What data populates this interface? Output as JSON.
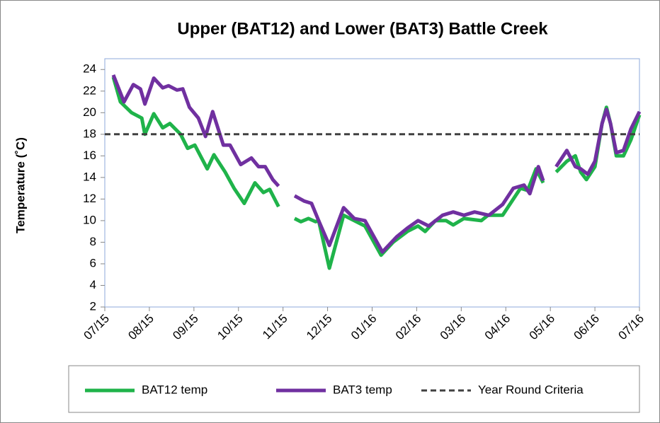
{
  "chart_data": {
    "type": "line",
    "title": "Upper (BAT12) and Lower (BAT3) Battle Creek",
    "y_label": "Temperature (˚C)",
    "xlim": [
      0,
      12
    ],
    "xticks": [
      {
        "value": 0,
        "label": "07/15"
      },
      {
        "value": 1,
        "label": "08/15"
      },
      {
        "value": 2,
        "label": "09/15"
      },
      {
        "value": 3,
        "label": "10/15"
      },
      {
        "value": 4,
        "label": "11/15"
      },
      {
        "value": 5,
        "label": "12/15"
      },
      {
        "value": 6,
        "label": "01/16"
      },
      {
        "value": 7,
        "label": "02/16"
      },
      {
        "value": 8,
        "label": "03/16"
      },
      {
        "value": 9,
        "label": "04/16"
      },
      {
        "value": 10,
        "label": "05/16"
      },
      {
        "value": 11,
        "label": "06/16"
      },
      {
        "value": 12,
        "label": "07/16"
      }
    ],
    "ylim": [
      2,
      25
    ],
    "yticks": [
      2,
      4,
      6,
      8,
      10,
      12,
      14,
      16,
      18,
      20,
      22,
      24
    ],
    "legend": "bottom",
    "series": [
      {
        "name": "BAT12 temp",
        "color": "#1fb34a",
        "dash": false,
        "x": [
          0.19,
          0.35,
          0.6,
          0.83,
          0.9,
          1.1,
          1.3,
          1.46,
          1.7,
          1.86,
          2.02,
          2.3,
          2.45,
          2.7,
          2.9,
          3.13,
          3.37,
          3.56,
          3.7,
          3.9,
          4.1,
          4.26,
          4.4,
          4.57,
          4.73,
          4.8,
          5.04,
          5.36,
          5.6,
          5.84,
          6.2,
          6.47,
          6.79,
          7.03,
          7.19,
          7.42,
          7.66,
          7.82,
          8.06,
          8.45,
          8.6,
          8.93,
          9.17,
          9.33,
          9.49,
          9.68,
          9.84,
          10.0,
          10.13,
          10.37,
          10.56,
          10.68,
          10.81,
          11.0,
          11.16,
          11.26,
          11.35,
          11.48,
          11.64,
          11.81,
          12.0
        ],
        "values": [
          23.3,
          21,
          20.0,
          19.5,
          18.0,
          19.9,
          18.6,
          19.0,
          18.0,
          16.7,
          17.0,
          14.8,
          16.1,
          14.5,
          13.0,
          11.6,
          13.5,
          12.6,
          12.9,
          11.3,
          null,
          10.2,
          9.9,
          10.2,
          9.9,
          10.0,
          5.6,
          10.5,
          10.0,
          9.5,
          6.8,
          8.0,
          9.0,
          9.5,
          9.0,
          10.0,
          10.0,
          9.6,
          10.2,
          10.0,
          10.5,
          10.5,
          12.0,
          13.0,
          12.8,
          14.8,
          13.5,
          null,
          14.5,
          15.5,
          16.0,
          14.5,
          13.8,
          15.0,
          19.0,
          20.5,
          19.0,
          16.0,
          16.0,
          17.5,
          19.8
        ]
      },
      {
        "name": "BAT3 temp",
        "color": "#7030a0",
        "dash": false,
        "x": [
          0.19,
          0.43,
          0.64,
          0.8,
          0.9,
          1.1,
          1.3,
          1.43,
          1.62,
          1.75,
          1.9,
          2.1,
          2.26,
          2.42,
          2.66,
          2.81,
          3.05,
          3.29,
          3.45,
          3.6,
          3.77,
          3.9,
          4.1,
          4.26,
          4.48,
          4.64,
          4.8,
          5.04,
          5.36,
          5.6,
          5.84,
          6.23,
          6.55,
          6.79,
          7.03,
          7.27,
          7.58,
          7.82,
          8.06,
          8.3,
          8.62,
          8.93,
          9.17,
          9.41,
          9.54,
          9.73,
          9.84,
          10.0,
          10.13,
          10.37,
          10.56,
          10.68,
          10.84,
          11.0,
          11.16,
          11.26,
          11.35,
          11.48,
          11.64,
          11.81,
          12.0
        ],
        "values": [
          23.5,
          21,
          22.6,
          22.2,
          20.8,
          23.2,
          22.3,
          22.5,
          22.1,
          22.2,
          20.5,
          19.5,
          17.8,
          20.1,
          17.0,
          17.0,
          15.2,
          15.8,
          15.0,
          15.0,
          13.8,
          13.2,
          null,
          12.3,
          11.8,
          11.6,
          10.0,
          7.7,
          11.2,
          10.2,
          10.0,
          7.1,
          8.5,
          9.3,
          10.0,
          9.5,
          10.5,
          10.8,
          10.5,
          10.8,
          10.5,
          11.5,
          13.0,
          13.3,
          12.5,
          15.0,
          13.7,
          null,
          15.0,
          16.5,
          15.0,
          14.8,
          14.3,
          15.5,
          19.0,
          20.3,
          19.0,
          16.3,
          16.5,
          18.5,
          20.1
        ]
      },
      {
        "name": "Year Round Criteria",
        "color": "#404040",
        "dash": true,
        "x": [
          0,
          12
        ],
        "values": [
          18,
          18
        ]
      }
    ]
  }
}
